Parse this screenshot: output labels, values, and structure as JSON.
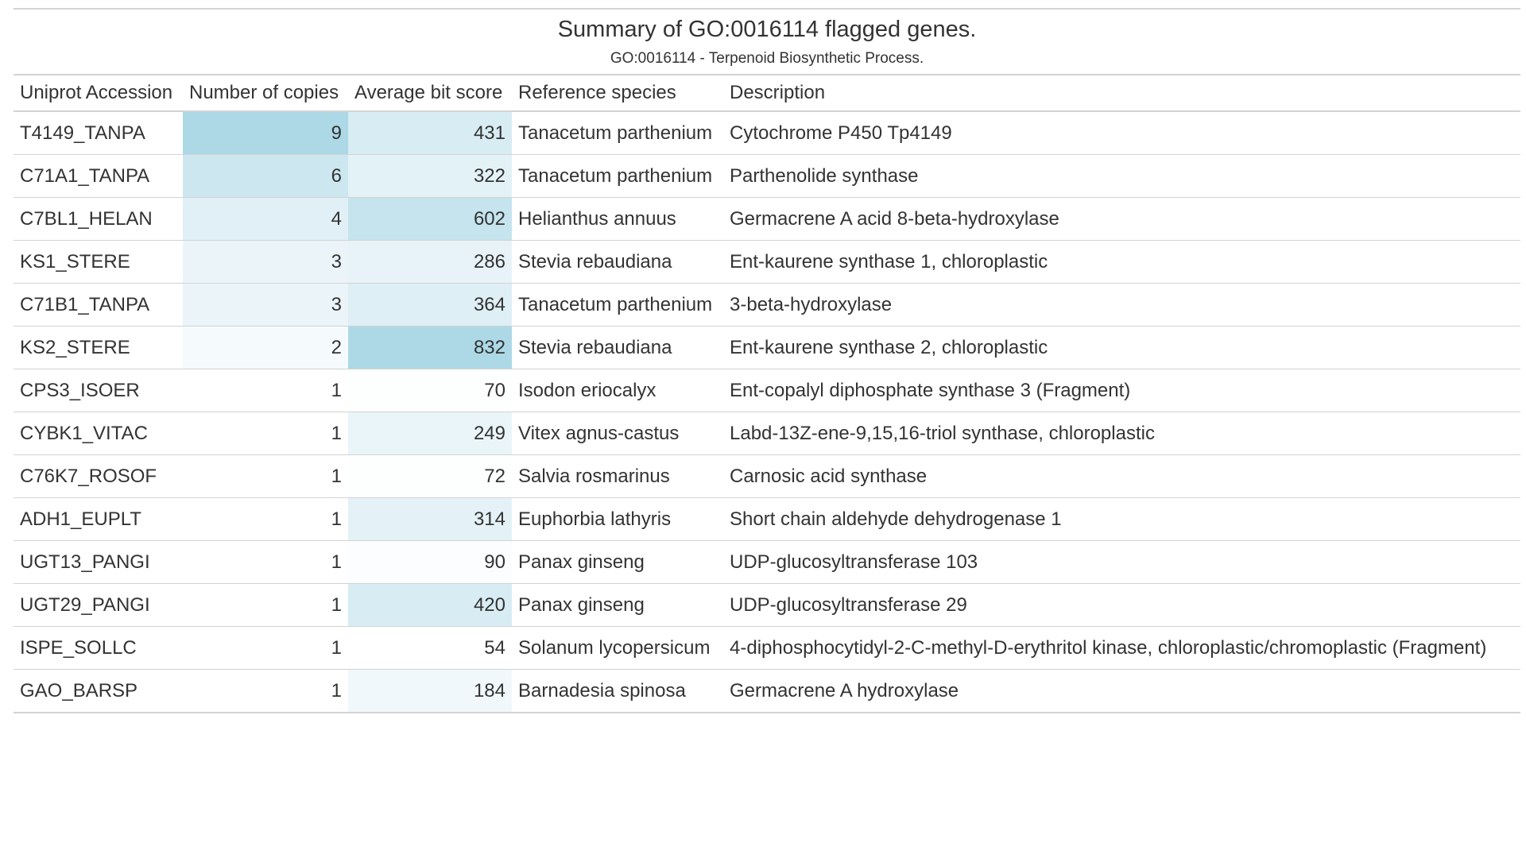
{
  "table": {
    "title": "Summary of GO:0016114 flagged genes.",
    "subtitle": "GO:0016114 - Terpenoid Biosynthetic Process.",
    "columns": [
      "Uniprot Accession",
      "Number of copies",
      "Average bit score",
      "Reference species",
      "Description"
    ],
    "heat_colors": {
      "copies_max": "#add8e6",
      "bits_max": "#add8e6",
      "min": "#ffffff"
    },
    "rows": [
      {
        "accession": "T4149_TANPA",
        "copies": 9,
        "bits": 431,
        "species": "Tanacetum parthenium",
        "description": "Cytochrome P450 Tp4149"
      },
      {
        "accession": "C71A1_TANPA",
        "copies": 6,
        "bits": 322,
        "species": "Tanacetum parthenium",
        "description": "Parthenolide synthase"
      },
      {
        "accession": "C7BL1_HELAN",
        "copies": 4,
        "bits": 602,
        "species": "Helianthus annuus",
        "description": "Germacrene A acid 8-beta-hydroxylase"
      },
      {
        "accession": "KS1_STERE",
        "copies": 3,
        "bits": 286,
        "species": "Stevia rebaudiana",
        "description": "Ent-kaurene synthase 1, chloroplastic"
      },
      {
        "accession": "C71B1_TANPA",
        "copies": 3,
        "bits": 364,
        "species": "Tanacetum parthenium",
        "description": "3-beta-hydroxylase"
      },
      {
        "accession": "KS2_STERE",
        "copies": 2,
        "bits": 832,
        "species": "Stevia rebaudiana",
        "description": "Ent-kaurene synthase 2, chloroplastic"
      },
      {
        "accession": "CPS3_ISOER",
        "copies": 1,
        "bits": 70,
        "species": "Isodon eriocalyx",
        "description": "Ent-copalyl diphosphate synthase 3 (Fragment)"
      },
      {
        "accession": "CYBK1_VITAC",
        "copies": 1,
        "bits": 249,
        "species": "Vitex agnus-castus",
        "description": "Labd-13Z-ene-9,15,16-triol synthase, chloroplastic"
      },
      {
        "accession": "C76K7_ROSOF",
        "copies": 1,
        "bits": 72,
        "species": "Salvia rosmarinus",
        "description": "Carnosic acid synthase"
      },
      {
        "accession": "ADH1_EUPLT",
        "copies": 1,
        "bits": 314,
        "species": "Euphorbia lathyris",
        "description": "Short chain aldehyde dehydrogenase 1"
      },
      {
        "accession": "UGT13_PANGI",
        "copies": 1,
        "bits": 90,
        "species": "Panax ginseng",
        "description": "UDP-glucosyltransferase 103"
      },
      {
        "accession": "UGT29_PANGI",
        "copies": 1,
        "bits": 420,
        "species": "Panax ginseng",
        "description": "UDP-glucosyltransferase 29"
      },
      {
        "accession": "ISPE_SOLLC",
        "copies": 1,
        "bits": 54,
        "species": "Solanum lycopersicum",
        "description": "4-diphosphocytidyl-2-C-methyl-D-erythritol kinase, chloroplastic/chromoplastic (Fragment)"
      },
      {
        "accession": "GAO_BARSP",
        "copies": 1,
        "bits": 184,
        "species": "Barnadesia spinosa",
        "description": "Germacrene A hydroxylase"
      }
    ]
  }
}
